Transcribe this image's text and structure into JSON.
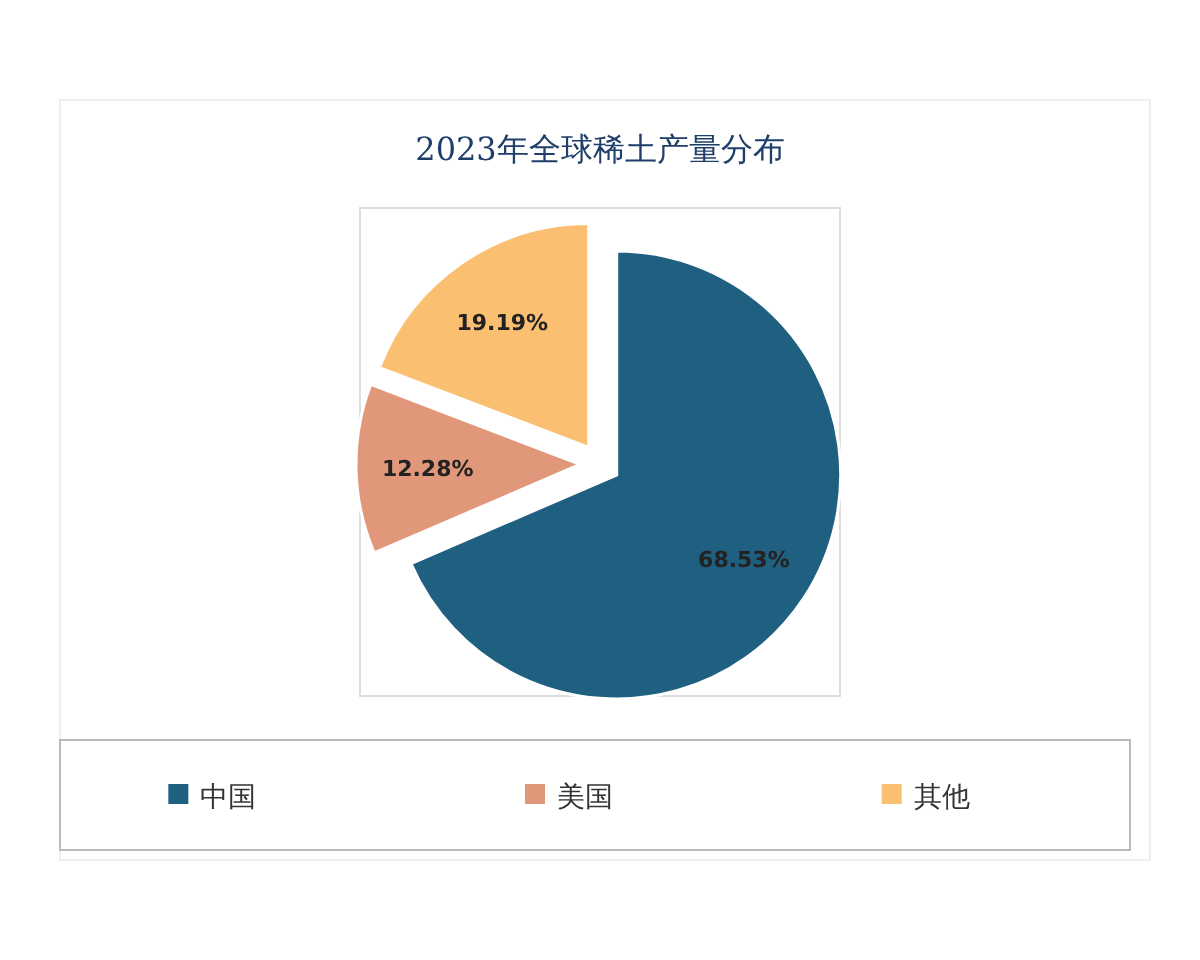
{
  "chart_data": {
    "type": "pie",
    "title": "2023年全球稀土产量分布",
    "categories": [
      "中国",
      "美国",
      "其他"
    ],
    "values": [
      68.53,
      12.28,
      19.19
    ],
    "colors": [
      "#1f5f80",
      "#e0977a",
      "#fbbf72"
    ],
    "value_labels": [
      "68.53%",
      "12.28%",
      "19.19%"
    ],
    "legend": "bottom"
  }
}
